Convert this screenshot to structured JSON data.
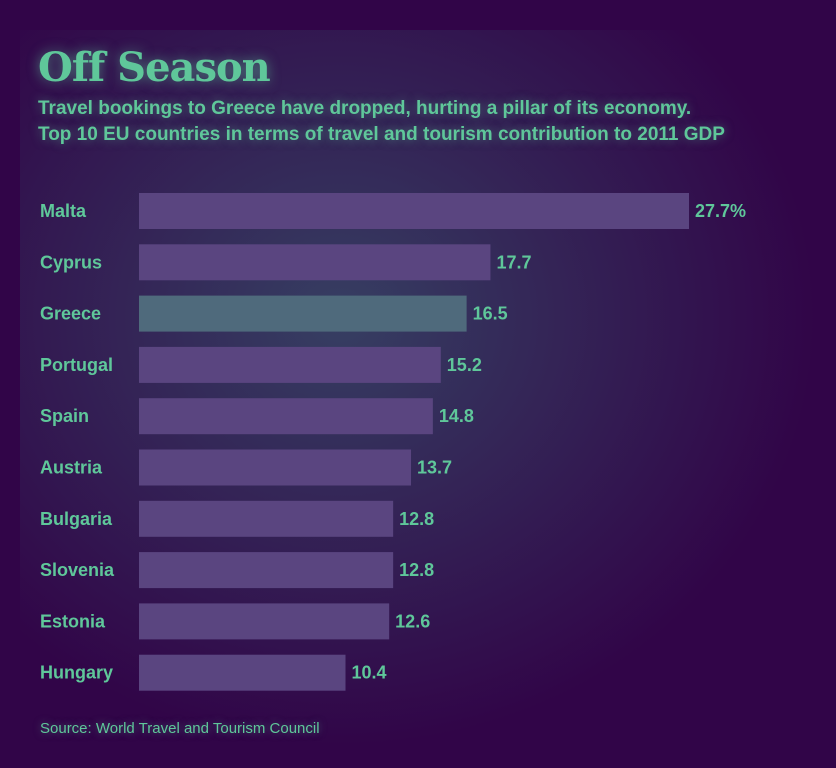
{
  "header": {
    "title": "Off Season",
    "subtitle_line1": "Travel bookings to Greece have dropped, hurting a pillar of its economy.",
    "subtitle_line2": "Top 10 EU countries in terms of travel and tourism contribution to 2011 GDP"
  },
  "chart_data": {
    "type": "bar",
    "orientation": "horizontal",
    "categories": [
      "Malta",
      "Cyprus",
      "Greece",
      "Portugal",
      "Spain",
      "Austria",
      "Bulgaria",
      "Slovenia",
      "Estonia",
      "Hungary"
    ],
    "values": [
      27.7,
      17.7,
      16.5,
      15.2,
      14.8,
      13.7,
      12.8,
      12.8,
      12.6,
      10.4
    ],
    "value_labels": [
      "27.7%",
      "17.7",
      "16.5",
      "15.2",
      "14.8",
      "13.7",
      "12.8",
      "12.8",
      "12.6",
      "10.4"
    ],
    "unit": "%",
    "grid": false,
    "legend": "none",
    "colors": {
      "bar": "#5a4580",
      "highlight_bar": "#4f6a7c",
      "text": "#5fc79a",
      "background": "#310548"
    }
  },
  "footer": {
    "source": "Source: World Travel and Tourism Council"
  }
}
